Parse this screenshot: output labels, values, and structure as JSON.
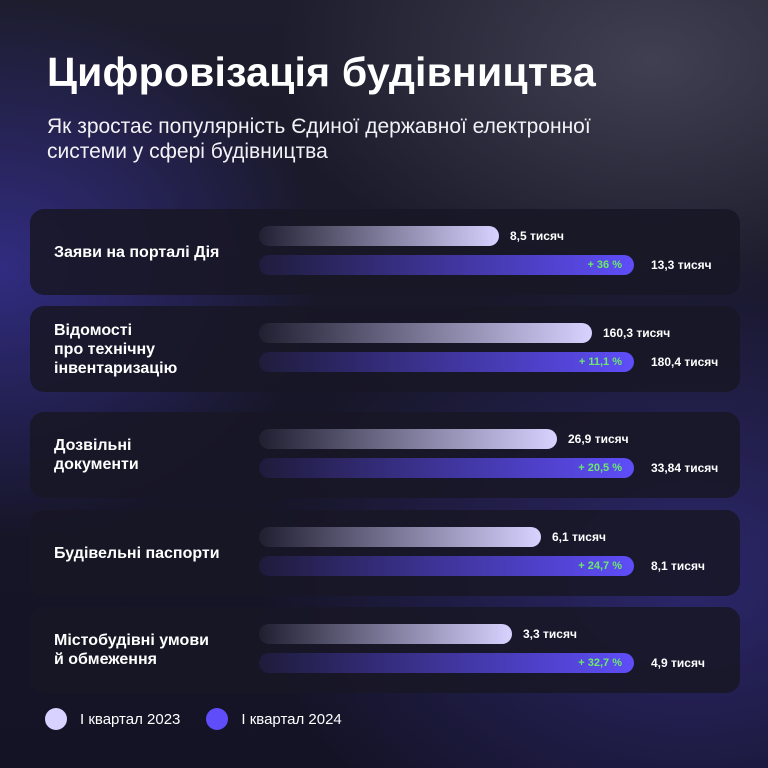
{
  "title": "Цифровізація будівництва",
  "subtitle": "Як зростає популярність Єдиної державної електронної системи у сфері будівництва",
  "colors": {
    "series_2023": "#d7d2ff",
    "series_2024": "#5f4df9",
    "growth": "#6bea6b",
    "card_bg": "#181726"
  },
  "chart_data": {
    "type": "bar",
    "orientation": "horizontal",
    "categories": [
      "Заяви на порталі Дія",
      "Відомості про технічну інвентаризацію",
      "Дозвільні документи",
      "Будівельні паспорти",
      "Містобудівні умови й обмеження"
    ],
    "category_lines": [
      [
        "Заяви на порталі Дія"
      ],
      [
        "Відомості",
        "про технічну",
        "інвентаризацію"
      ],
      [
        "Дозвільні",
        "документи"
      ],
      [
        "Будівельні паспорти"
      ],
      [
        "Містобудівні умови",
        "й обмеження"
      ]
    ],
    "series": [
      {
        "name": "І квартал 2023",
        "values": [
          8.5,
          160.3,
          26.9,
          6.1,
          3.3
        ],
        "labels": [
          "8,5 тисяч",
          "160,3 тисяч",
          "26,9 тисяч",
          "6,1 тисяч",
          "3,3 тисяч"
        ]
      },
      {
        "name": "І квартал 2024",
        "values": [
          13.3,
          180.4,
          33.84,
          8.1,
          4.9
        ],
        "labels": [
          "13,3 тисяч",
          "180,4 тисяч",
          "33,84 тисяч",
          "8,1 тисяч",
          "4,9 тисяч"
        ]
      }
    ],
    "growth_labels": [
      "+ 36 %",
      "+ 11,1 %",
      "+ 20,5 %",
      "+ 24,7 %",
      "+ 32,7 %"
    ],
    "legend": [
      "І квартал 2023",
      "І квартал 2024"
    ],
    "legend_position": "bottom-left",
    "scale": "each category scaled to its own 2024 value",
    "grid": false
  }
}
